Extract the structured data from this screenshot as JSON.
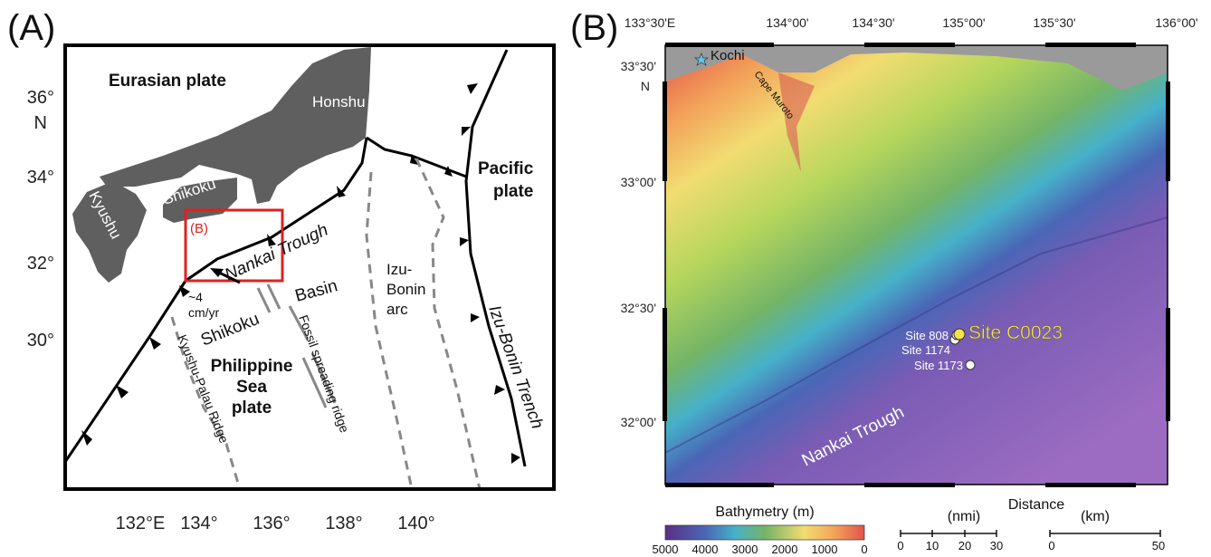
{
  "panel_a": {
    "label": "(A)",
    "y_axis": [
      "36°",
      "N",
      "34°",
      "32°",
      "30°"
    ],
    "x_axis": [
      "132°E",
      "134°",
      "136°",
      "138°",
      "140°"
    ],
    "map_labels": {
      "eurasian": "Eurasian plate",
      "honshu": "Honshu",
      "pacific": [
        "Pacific",
        "plate"
      ],
      "shikoku_island": "Shikoku",
      "kyushu": "Kyushu",
      "box": "(B)",
      "nankai": "Nankai Trough",
      "basin": "Basin",
      "arc": [
        "Izu-",
        "Bonin",
        "arc"
      ],
      "rate": [
        "~4",
        "cm/yr"
      ],
      "shikoku_basin": "Shikoku",
      "fossil": "Fossil spreading ridge",
      "philippine": [
        "Philippine",
        "Sea",
        "plate"
      ],
      "kyushu_palau": "Kyushu-Palau Ridge",
      "izu_trench": "Izu-Bonin Trench"
    }
  },
  "panel_b": {
    "label": "(B)",
    "x_axis": [
      "133°30'E",
      "134°00'",
      "134°30'",
      "135°00'",
      "135°30'",
      "136°00'"
    ],
    "y_axis": [
      "33°30'",
      "N",
      "33°00'",
      "32°30'",
      "32°00'"
    ],
    "map_labels": {
      "kochi": "Kochi",
      "muroto": "Cape Muroto",
      "site808": "Site 808",
      "site1174": "Site 1174",
      "site1173": "Site 1173",
      "sitec0023": "Site C0023",
      "nankai": "Nankai Trough"
    },
    "colorbar": {
      "title": "Bathymetry (m)",
      "ticks": [
        "5000",
        "4000",
        "3000",
        "2000",
        "1000",
        "0"
      ]
    },
    "scale": {
      "title": "Distance",
      "nmi_unit": "(nmi)",
      "km_unit": "(km)",
      "nmi_ticks": [
        "0",
        "10",
        "20",
        "30"
      ],
      "km_ticks": [
        "0",
        "50"
      ]
    }
  }
}
